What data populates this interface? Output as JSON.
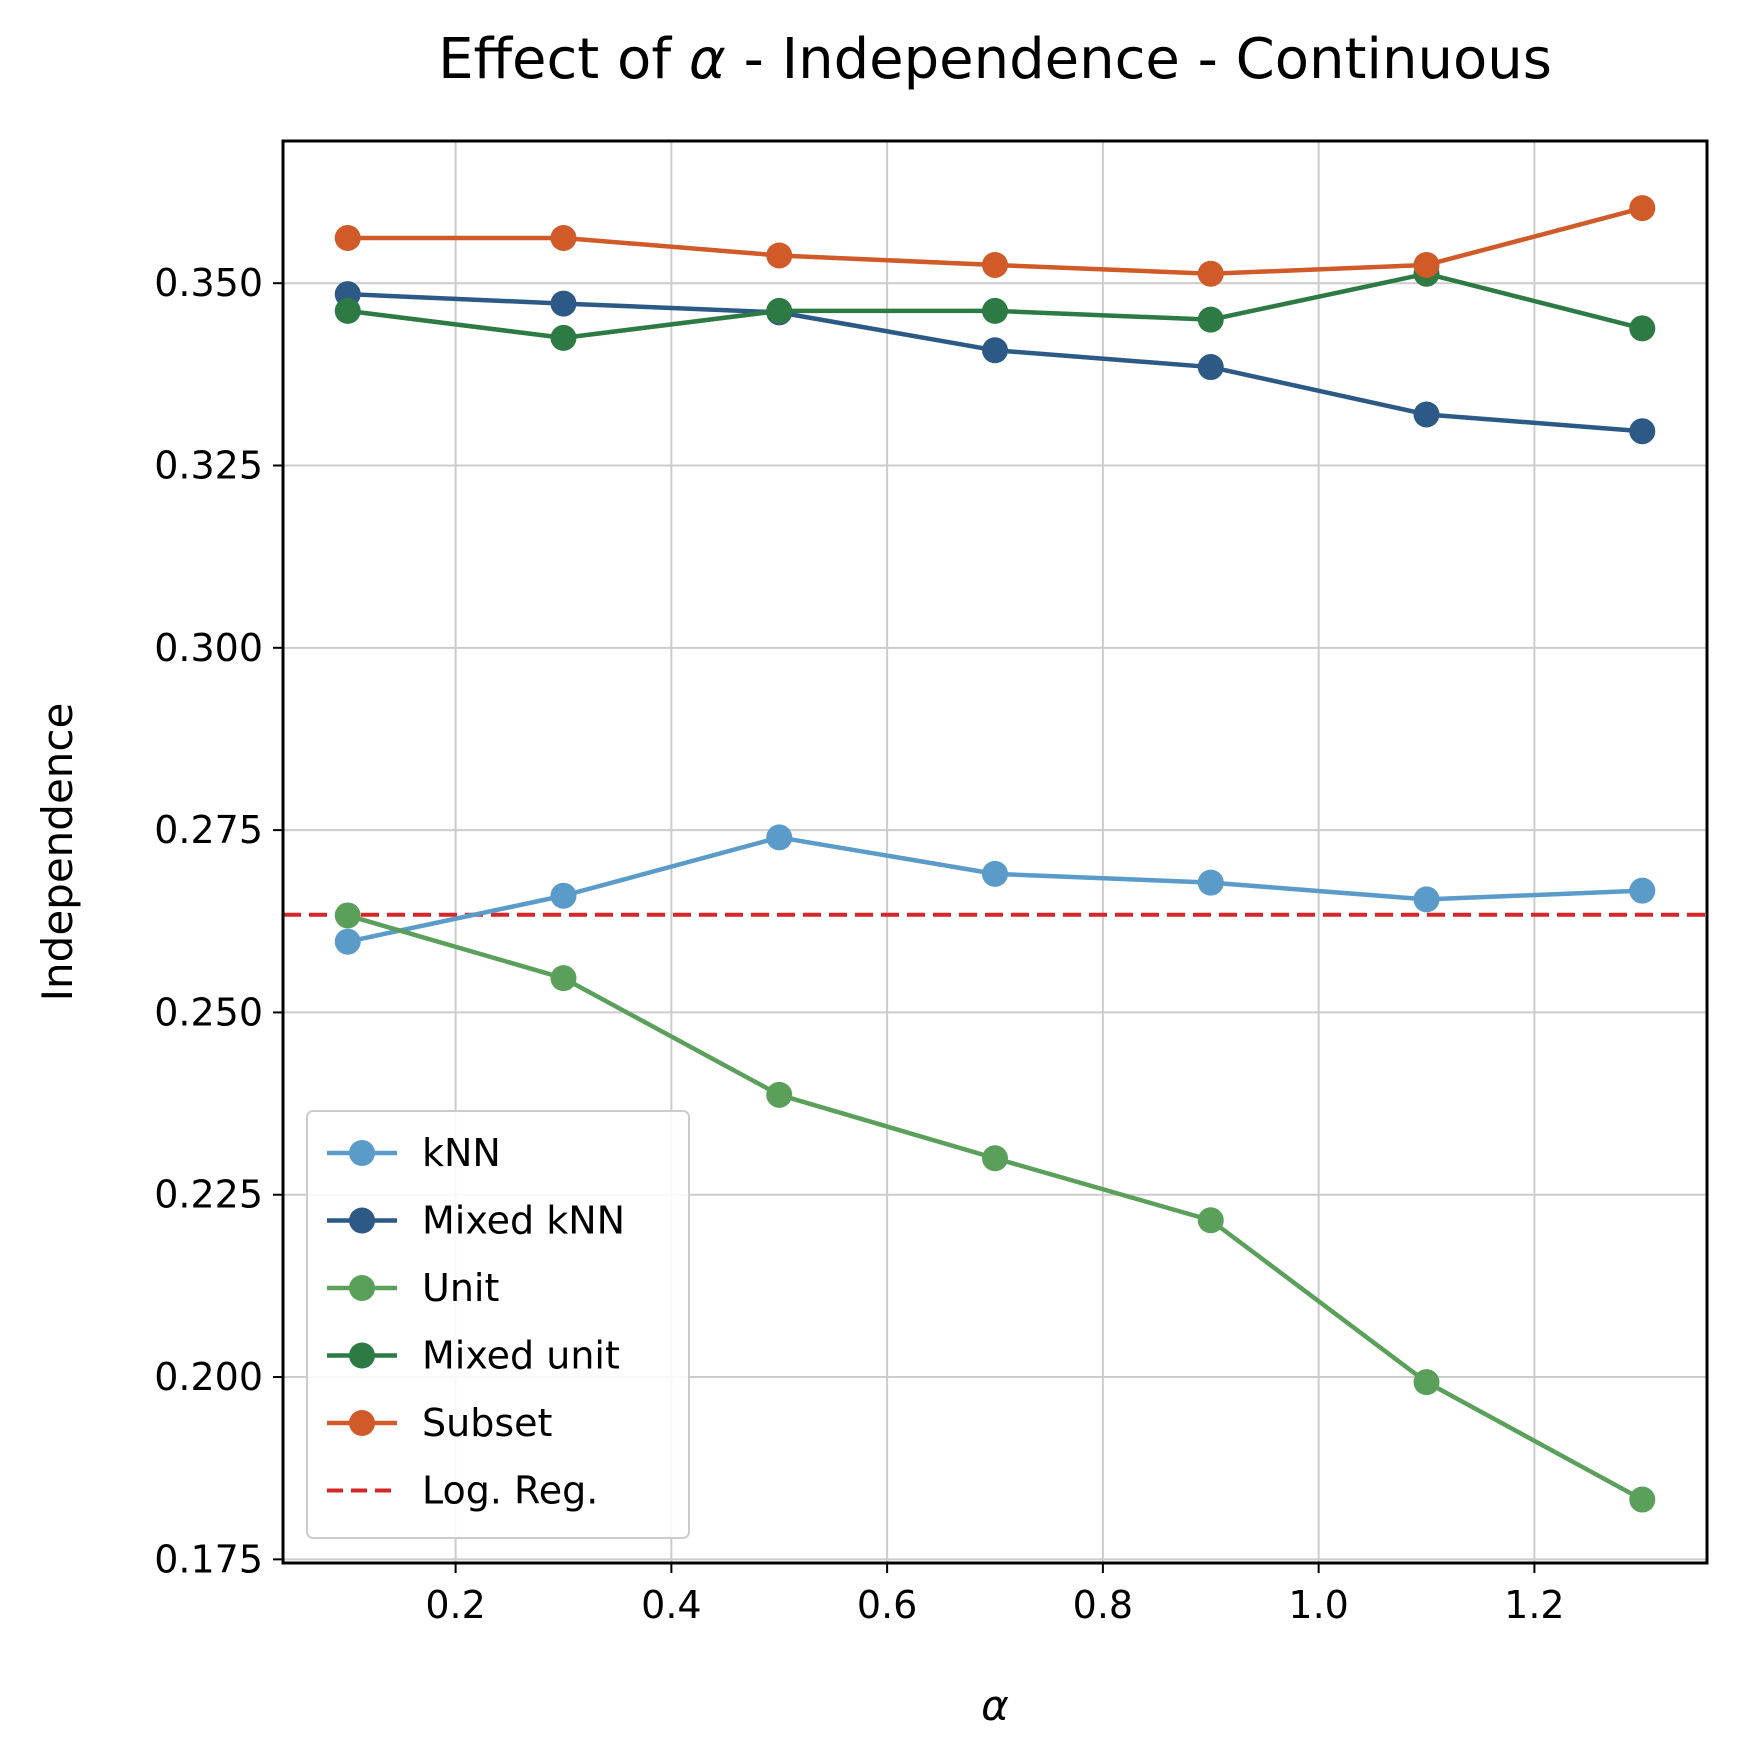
{
  "chart_data": {
    "type": "line",
    "title_prefix": "Effect of ",
    "title_symbol": "α",
    "title_suffix": " - Independence - Continuous",
    "xlabel": "α",
    "ylabel": "Independence",
    "xlim": [
      0.04,
      1.36
    ],
    "ylim": [
      0.1745,
      0.3695
    ],
    "x": [
      0.1,
      0.3,
      0.5,
      0.7,
      0.9,
      1.1,
      1.3
    ],
    "xticks": [
      {
        "value": 0.2,
        "label": "0.2"
      },
      {
        "value": 0.4,
        "label": "0.4"
      },
      {
        "value": 0.6,
        "label": "0.6"
      },
      {
        "value": 0.8,
        "label": "0.8"
      },
      {
        "value": 1.0,
        "label": "1.0"
      },
      {
        "value": 1.2,
        "label": "1.2"
      }
    ],
    "yticks": [
      {
        "value": 0.175,
        "label": "0.175"
      },
      {
        "value": 0.2,
        "label": "0.200"
      },
      {
        "value": 0.225,
        "label": "0.225"
      },
      {
        "value": 0.25,
        "label": "0.250"
      },
      {
        "value": 0.275,
        "label": "0.275"
      },
      {
        "value": 0.3,
        "label": "0.300"
      },
      {
        "value": 0.325,
        "label": "0.325"
      },
      {
        "value": 0.35,
        "label": "0.350"
      }
    ],
    "grid": true,
    "legend_position": "lower-left",
    "series": [
      {
        "name": "kNN",
        "color": "#5a9bc9",
        "values": [
          0.2597,
          0.266,
          0.274,
          0.269,
          0.2678,
          0.2655,
          0.2667
        ]
      },
      {
        "name": "Mixed kNN",
        "color": "#2d5986",
        "values": [
          0.3485,
          0.3472,
          0.346,
          0.3408,
          0.3385,
          0.332,
          0.3297
        ]
      },
      {
        "name": "Unit",
        "color": "#5aa05a",
        "values": [
          0.2633,
          0.2547,
          0.2387,
          0.23,
          0.2215,
          0.1993,
          0.1832
        ]
      },
      {
        "name": "Mixed unit",
        "color": "#2d7a45",
        "values": [
          0.3462,
          0.3425,
          0.3462,
          0.3462,
          0.345,
          0.3513,
          0.3438
        ]
      },
      {
        "name": "Subset",
        "color": "#d05a28",
        "values": [
          0.3562,
          0.3562,
          0.3538,
          0.3525,
          0.3513,
          0.3525,
          0.3603
        ]
      }
    ],
    "reference_line": {
      "name": "Log. Reg.",
      "color": "#d62728",
      "value": 0.2634,
      "style": "dashed"
    }
  }
}
